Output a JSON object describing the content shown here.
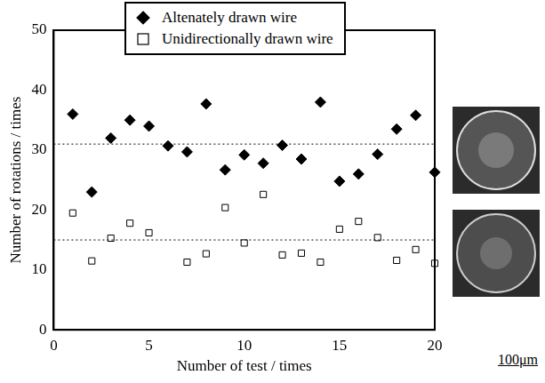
{
  "chart_data": {
    "type": "scatter",
    "xlabel": "Number of test / times",
    "ylabel": "Number of rotations / times",
    "xlim": [
      0,
      20
    ],
    "xticks": [
      0,
      5,
      10,
      15,
      20
    ],
    "ylim": [
      0,
      50
    ],
    "yticks": [
      0,
      10,
      20,
      30,
      40,
      50
    ],
    "grid": false,
    "legend": "top",
    "series": [
      {
        "name": "Altenately drawn wire",
        "color": "#000000",
        "marker": "diamond",
        "x": [
          1,
          2,
          3,
          4,
          5,
          6,
          7,
          8,
          9,
          10,
          11,
          12,
          13,
          14,
          15,
          16,
          17,
          18,
          19,
          20
        ],
        "values": [
          36,
          23,
          32,
          35,
          34,
          30.7,
          29.7,
          37.7,
          26.7,
          29.2,
          27.8,
          30.8,
          28.5,
          38,
          24.8,
          26,
          29.3,
          33.5,
          35.8,
          26.3
        ],
        "mean": 31
      },
      {
        "name": "Unidirectionally drawn wire",
        "color": "#000000",
        "marker": "open square",
        "x": [
          1,
          2,
          3,
          4,
          5,
          7,
          8,
          9,
          10,
          11,
          12,
          13,
          14,
          15,
          16,
          17,
          18,
          19,
          20
        ],
        "values": [
          19.5,
          11.5,
          15.3,
          17.8,
          16.2,
          11.3,
          12.7,
          20.4,
          14.5,
          22.6,
          12.5,
          12.8,
          11.3,
          16.8,
          18.1,
          15.4,
          11.6,
          13.4,
          11.1
        ],
        "mean": 15
      }
    ],
    "scale_bar_label": "100μm"
  }
}
